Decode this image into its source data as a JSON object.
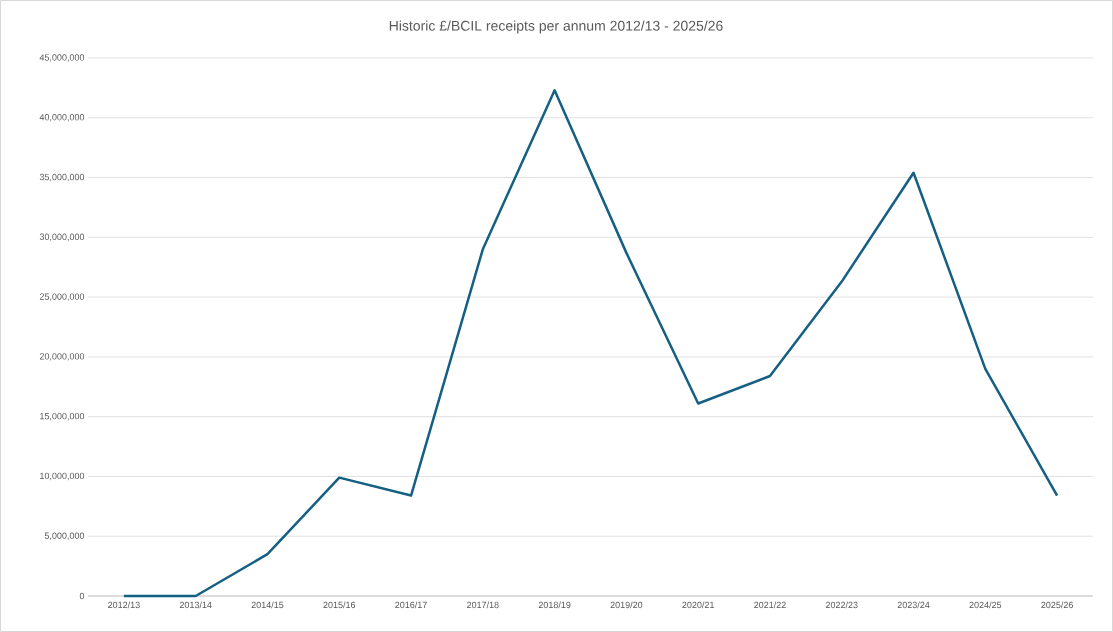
{
  "chart_data": {
    "type": "line",
    "title": "Historic £/BCIL receipts per annum 2012/13 - 2025/26",
    "categories": [
      "2012/13",
      "2013/14",
      "2014/15",
      "2015/16",
      "2016/17",
      "2017/18",
      "2018/19",
      "2019/20",
      "2020/21",
      "2021/22",
      "2022/23",
      "2023/24",
      "2024/25",
      "2025/26"
    ],
    "values": [
      0,
      0,
      3500000,
      9900000,
      8400000,
      29000000,
      42300000,
      28700000,
      16100000,
      18400000,
      26300000,
      35400000,
      19000000,
      8400000
    ],
    "color": "#156082",
    "ylim": [
      0,
      45000000
    ],
    "yticks": [
      {
        "value": 0,
        "label": "0"
      },
      {
        "value": 5000000,
        "label": "5,000,000"
      },
      {
        "value": 10000000,
        "label": "10,000,000"
      },
      {
        "value": 15000000,
        "label": "15,000,000"
      },
      {
        "value": 20000000,
        "label": "20,000,000"
      },
      {
        "value": 25000000,
        "label": "25,000,000"
      },
      {
        "value": 30000000,
        "label": "30,000,000"
      },
      {
        "value": 35000000,
        "label": "35,000,000"
      },
      {
        "value": 40000000,
        "label": "40,000,000"
      },
      {
        "value": 45000000,
        "label": "45,000,000"
      }
    ],
    "grid": "y"
  }
}
